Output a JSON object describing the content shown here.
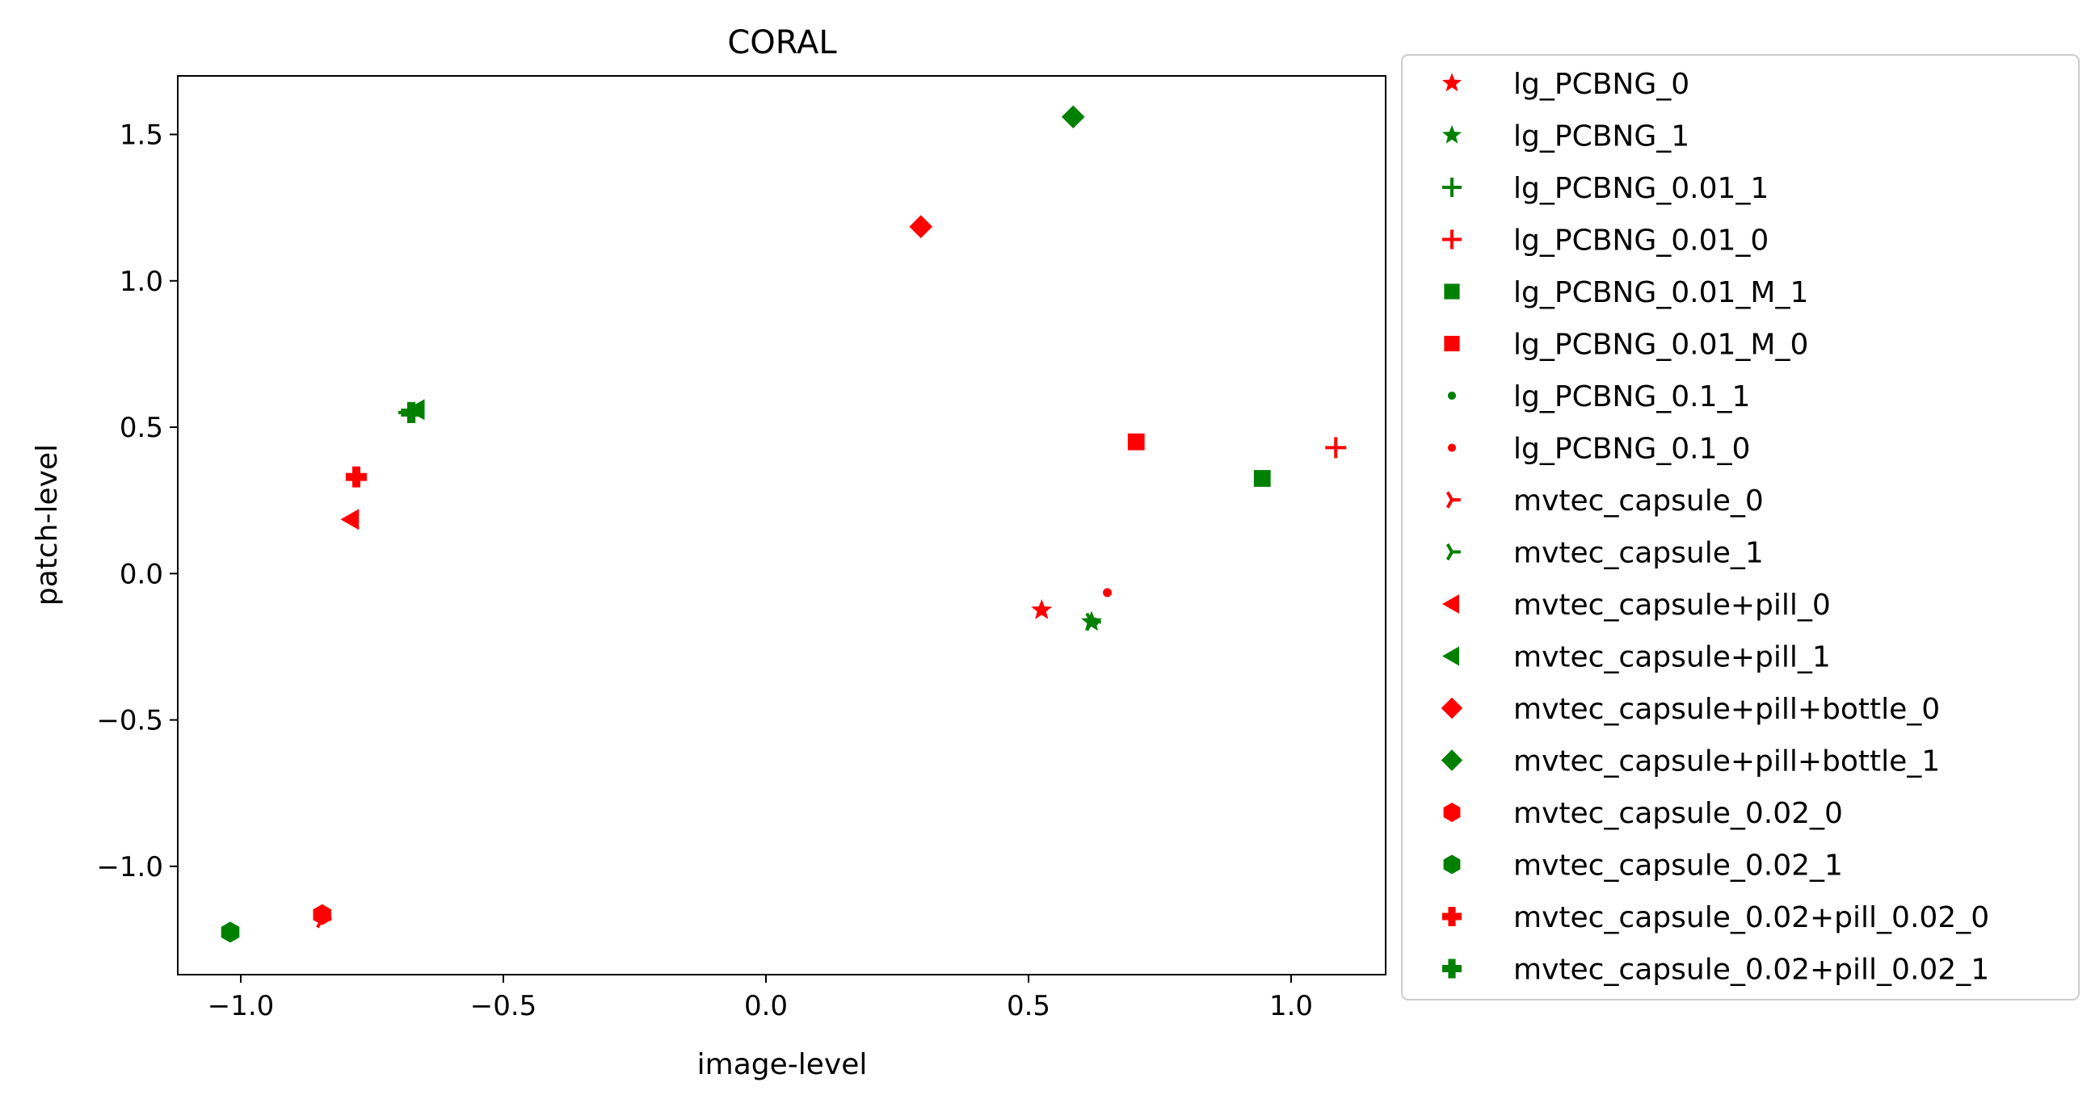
{
  "chart_data": {
    "type": "scatter",
    "title": "CORAL",
    "xlabel": "image-level",
    "ylabel": "patch-level",
    "xlim": [
      -1.12,
      1.18
    ],
    "ylim": [
      -1.37,
      1.7
    ],
    "xticks": [
      -1.0,
      -0.5,
      0.0,
      0.5,
      1.0
    ],
    "xtick_labels": [
      "−1.0",
      "−0.5",
      "0.0",
      "0.5",
      "1.0"
    ],
    "yticks": [
      -1.0,
      -0.5,
      0.0,
      0.5,
      1.0,
      1.5
    ],
    "ytick_labels": [
      "−1.0",
      "−0.5",
      "0.0",
      "0.5",
      "1.0",
      "1.5"
    ],
    "grid": false,
    "legend_position": "outside-right",
    "series": [
      {
        "name": "lg_PCBNG_0",
        "marker": "star",
        "color": "#ff0000",
        "points": [
          {
            "x": 0.525,
            "y": -0.125
          }
        ]
      },
      {
        "name": "lg_PCBNG_1",
        "marker": "star",
        "color": "#008000",
        "points": [
          {
            "x": 0.62,
            "y": -0.165
          }
        ]
      },
      {
        "name": "lg_PCBNG_0.01_1",
        "marker": "plus",
        "color": "#008000",
        "points": [
          {
            "x": -0.68,
            "y": 0.55
          }
        ]
      },
      {
        "name": "lg_PCBNG_0.01_0",
        "marker": "plus",
        "color": "#ff0000",
        "points": [
          {
            "x": 1.085,
            "y": 0.43
          }
        ]
      },
      {
        "name": "lg_PCBNG_0.01_M_1",
        "marker": "square",
        "color": "#008000",
        "points": [
          {
            "x": 0.945,
            "y": 0.325
          }
        ]
      },
      {
        "name": "lg_PCBNG_0.01_M_0",
        "marker": "square",
        "color": "#ff0000",
        "points": [
          {
            "x": 0.705,
            "y": 0.45
          }
        ]
      },
      {
        "name": "lg_PCBNG_0.1_1",
        "marker": "dot",
        "color": "#008000",
        "points": [
          {
            "x": 0.625,
            "y": -0.165
          }
        ]
      },
      {
        "name": "lg_PCBNG_0.1_0",
        "marker": "dot",
        "color": "#ff0000",
        "points": [
          {
            "x": 0.65,
            "y": -0.065
          }
        ]
      },
      {
        "name": "mvtec_capsule_0",
        "marker": "tri",
        "color": "#ff0000",
        "points": [
          {
            "x": -0.845,
            "y": -1.18
          }
        ]
      },
      {
        "name": "mvtec_capsule_1",
        "marker": "tri",
        "color": "#008000",
        "points": [
          {
            "x": 0.62,
            "y": -0.165
          }
        ]
      },
      {
        "name": "mvtec_capsule+pill_0",
        "marker": "triangle-left",
        "color": "#ff0000",
        "points": [
          {
            "x": -0.79,
            "y": 0.185
          }
        ]
      },
      {
        "name": "mvtec_capsule+pill_1",
        "marker": "triangle-left",
        "color": "#008000",
        "points": [
          {
            "x": -0.665,
            "y": 0.56
          }
        ]
      },
      {
        "name": "mvtec_capsule+pill+bottle_0",
        "marker": "diamond",
        "color": "#ff0000",
        "points": [
          {
            "x": 0.295,
            "y": 1.185
          }
        ]
      },
      {
        "name": "mvtec_capsule+pill+bottle_1",
        "marker": "diamond",
        "color": "#008000",
        "points": [
          {
            "x": 0.585,
            "y": 1.56
          }
        ]
      },
      {
        "name": "mvtec_capsule_0.02_0",
        "marker": "hexagon",
        "color": "#ff0000",
        "points": [
          {
            "x": -0.845,
            "y": -1.165
          }
        ]
      },
      {
        "name": "mvtec_capsule_0.02_1",
        "marker": "hexagon",
        "color": "#008000",
        "points": [
          {
            "x": -1.02,
            "y": -1.225
          }
        ]
      },
      {
        "name": "mvtec_capsule_0.02+pill_0.02_0",
        "marker": "plus-filled",
        "color": "#ff0000",
        "points": [
          {
            "x": -0.78,
            "y": 0.33
          }
        ]
      },
      {
        "name": "mvtec_capsule_0.02+pill_0.02_1",
        "marker": "plus-filled",
        "color": "#008000",
        "points": [
          {
            "x": -0.675,
            "y": 0.55
          }
        ]
      }
    ]
  }
}
